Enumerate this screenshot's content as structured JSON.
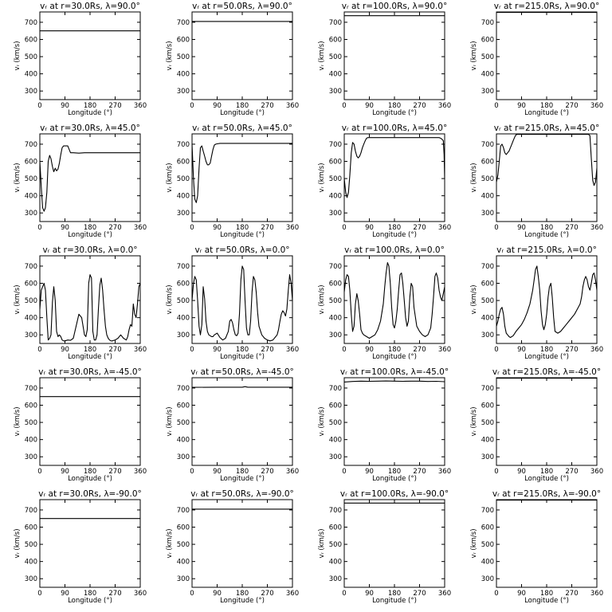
{
  "figure": {
    "x_label": "Longitude (°)",
    "y_label": "vᵣ (km/s)",
    "x_ticks": [
      0,
      90,
      180,
      270,
      360
    ],
    "y_ticks": [
      300,
      400,
      500,
      600,
      700
    ]
  },
  "chart_data": [
    {
      "type": "line",
      "title": "vᵣ at r=30.0Rs, λ=90.0°",
      "xlabel": "Longitude (°)",
      "ylabel": "vᵣ (km/s)",
      "xlim": [
        0,
        360
      ],
      "ylim": [
        250,
        760
      ],
      "x": [
        0,
        360
      ],
      "y": [
        650,
        650
      ]
    },
    {
      "type": "line",
      "title": "vᵣ at r=50.0Rs, λ=90.0°",
      "xlabel": "Longitude (°)",
      "ylabel": "vᵣ (km/s)",
      "xlim": [
        0,
        360
      ],
      "ylim": [
        250,
        760
      ],
      "x": [
        0,
        360
      ],
      "y": [
        705,
        705
      ]
    },
    {
      "type": "line",
      "title": "vᵣ at r=100.0Rs, λ=90.0°",
      "xlabel": "Longitude (°)",
      "ylabel": "vᵣ (km/s)",
      "xlim": [
        0,
        360
      ],
      "ylim": [
        250,
        760
      ],
      "x": [
        0,
        360
      ],
      "y": [
        738,
        738
      ]
    },
    {
      "type": "line",
      "title": "vᵣ at r=215.0Rs, λ=90.0°",
      "xlabel": "Longitude (°)",
      "ylabel": "vᵣ (km/s)",
      "xlim": [
        0,
        360
      ],
      "ylim": [
        250,
        760
      ],
      "x": [
        0,
        360
      ],
      "y": [
        757,
        757
      ]
    },
    {
      "type": "line",
      "title": "vᵣ at r=30.0Rs, λ=45.0°",
      "xlabel": "Longitude (°)",
      "ylabel": "vᵣ (km/s)",
      "xlim": [
        0,
        360
      ],
      "ylim": [
        250,
        760
      ],
      "x": [
        0,
        5,
        10,
        15,
        20,
        25,
        30,
        35,
        40,
        45,
        50,
        55,
        60,
        65,
        70,
        75,
        80,
        85,
        90,
        95,
        100,
        110,
        120,
        140,
        160,
        200,
        250,
        300,
        360
      ],
      "y": [
        600,
        450,
        330,
        310,
        330,
        420,
        600,
        635,
        615,
        570,
        540,
        560,
        545,
        555,
        590,
        640,
        680,
        690,
        690,
        690,
        690,
        650,
        650,
        648,
        650,
        650,
        650,
        650,
        650
      ]
    },
    {
      "type": "line",
      "title": "vᵣ at r=50.0Rs, λ=45.0°",
      "xlabel": "Longitude (°)",
      "ylabel": "vᵣ (km/s)",
      "xlim": [
        0,
        360
      ],
      "ylim": [
        250,
        760
      ],
      "x": [
        0,
        5,
        10,
        15,
        20,
        25,
        30,
        35,
        40,
        45,
        50,
        55,
        60,
        65,
        70,
        75,
        80,
        85,
        90,
        100,
        110,
        120,
        140,
        180,
        240,
        300,
        360
      ],
      "y": [
        700,
        500,
        380,
        360,
        400,
        560,
        680,
        690,
        660,
        630,
        600,
        580,
        580,
        590,
        630,
        670,
        695,
        700,
        702,
        705,
        705,
        705,
        705,
        705,
        705,
        705,
        705
      ]
    },
    {
      "type": "line",
      "title": "vᵣ at r=100.0Rs, λ=45.0°",
      "xlabel": "Longitude (°)",
      "ylabel": "vᵣ (km/s)",
      "xlim": [
        0,
        360
      ],
      "ylim": [
        250,
        760
      ],
      "x": [
        0,
        5,
        10,
        15,
        20,
        25,
        30,
        35,
        40,
        45,
        50,
        55,
        60,
        65,
        70,
        75,
        80,
        85,
        90,
        95,
        100,
        110,
        120,
        140,
        180,
        240,
        300,
        320,
        330,
        340,
        345,
        350,
        355,
        358,
        360
      ],
      "y": [
        500,
        420,
        390,
        420,
        520,
        650,
        710,
        700,
        660,
        630,
        620,
        630,
        650,
        680,
        700,
        720,
        735,
        738,
        738,
        738,
        738,
        738,
        738,
        738,
        738,
        738,
        738,
        738,
        738,
        738,
        735,
        730,
        720,
        640,
        500
      ]
    },
    {
      "type": "line",
      "title": "vᵣ at r=215.0Rs, λ=45.0°",
      "xlabel": "Longitude (°)",
      "ylabel": "vᵣ (km/s)",
      "xlim": [
        0,
        360
      ],
      "ylim": [
        250,
        760
      ],
      "x": [
        0,
        5,
        10,
        15,
        20,
        25,
        30,
        35,
        40,
        45,
        50,
        55,
        60,
        65,
        70,
        75,
        80,
        85,
        90,
        100,
        110,
        120,
        140,
        180,
        240,
        300,
        320,
        330,
        335,
        340,
        345,
        350,
        355,
        360
      ],
      "y": [
        480,
        520,
        600,
        690,
        700,
        680,
        650,
        640,
        650,
        660,
        680,
        700,
        720,
        740,
        755,
        757,
        757,
        757,
        757,
        757,
        757,
        757,
        757,
        757,
        757,
        757,
        757,
        757,
        750,
        620,
        490,
        460,
        480,
        560
      ]
    },
    {
      "type": "line",
      "title": "vᵣ at r=30.0Rs, λ=0.0°",
      "xlabel": "Longitude (°)",
      "ylabel": "vᵣ (km/s)",
      "xlim": [
        0,
        360
      ],
      "ylim": [
        250,
        760
      ],
      "x": [
        0,
        5,
        10,
        15,
        20,
        25,
        30,
        35,
        40,
        45,
        50,
        55,
        60,
        65,
        70,
        75,
        80,
        85,
        90,
        100,
        110,
        120,
        130,
        140,
        150,
        160,
        165,
        170,
        175,
        180,
        185,
        190,
        195,
        200,
        205,
        210,
        215,
        220,
        225,
        230,
        235,
        240,
        245,
        250,
        255,
        260,
        265,
        270,
        280,
        290,
        300,
        310,
        315,
        320,
        325,
        330,
        335,
        340,
        345,
        350,
        355,
        360
      ],
      "y": [
        450,
        560,
        580,
        600,
        560,
        400,
        270,
        280,
        300,
        490,
        580,
        500,
        320,
        290,
        300,
        290,
        270,
        265,
        265,
        270,
        268,
        280,
        350,
        420,
        400,
        300,
        290,
        330,
        600,
        650,
        630,
        320,
        270,
        270,
        300,
        450,
        590,
        630,
        560,
        450,
        350,
        300,
        280,
        270,
        265,
        265,
        268,
        270,
        280,
        300,
        280,
        270,
        290,
        330,
        360,
        350,
        480,
        420,
        400,
        480,
        580,
        600
      ]
    },
    {
      "type": "line",
      "title": "vᵣ at r=50.0Rs, λ=0.0°",
      "xlabel": "Longitude (°)",
      "ylabel": "vᵣ (km/s)",
      "xlim": [
        0,
        360
      ],
      "ylim": [
        250,
        760
      ],
      "x": [
        0,
        5,
        10,
        15,
        20,
        25,
        30,
        35,
        40,
        45,
        50,
        55,
        60,
        65,
        70,
        75,
        80,
        90,
        100,
        110,
        120,
        130,
        135,
        140,
        145,
        150,
        155,
        160,
        165,
        170,
        175,
        180,
        185,
        190,
        195,
        200,
        205,
        210,
        215,
        220,
        225,
        230,
        235,
        240,
        250,
        260,
        270,
        280,
        290,
        300,
        305,
        310,
        315,
        320,
        325,
        330,
        335,
        340,
        345,
        350,
        355,
        360
      ],
      "y": [
        500,
        600,
        640,
        620,
        500,
        350,
        300,
        360,
        580,
        510,
        380,
        320,
        300,
        295,
        290,
        290,
        300,
        310,
        285,
        270,
        280,
        320,
        380,
        390,
        370,
        330,
        300,
        295,
        310,
        420,
        620,
        700,
        680,
        500,
        340,
        300,
        300,
        380,
        550,
        640,
        620,
        550,
        430,
        350,
        300,
        280,
        270,
        265,
        270,
        290,
        300,
        330,
        380,
        420,
        440,
        430,
        410,
        450,
        560,
        650,
        600,
        500
      ]
    },
    {
      "type": "line",
      "title": "vᵣ at r=100.0Rs, λ=0.0°",
      "xlabel": "Longitude (°)",
      "ylabel": "vᵣ (km/s)",
      "xlim": [
        0,
        360
      ],
      "ylim": [
        250,
        760
      ],
      "x": [
        0,
        5,
        10,
        15,
        20,
        25,
        30,
        35,
        40,
        45,
        50,
        55,
        60,
        65,
        70,
        80,
        90,
        100,
        110,
        120,
        130,
        140,
        145,
        150,
        155,
        160,
        165,
        170,
        175,
        180,
        185,
        190,
        195,
        200,
        205,
        210,
        215,
        220,
        225,
        230,
        235,
        240,
        245,
        250,
        260,
        270,
        280,
        290,
        300,
        310,
        315,
        320,
        325,
        330,
        335,
        340,
        345,
        350,
        355,
        360
      ],
      "y": [
        550,
        620,
        650,
        640,
        560,
        420,
        320,
        350,
        480,
        540,
        500,
        420,
        330,
        310,
        300,
        290,
        280,
        290,
        300,
        330,
        380,
        480,
        580,
        660,
        720,
        700,
        600,
        460,
        360,
        340,
        380,
        450,
        560,
        650,
        660,
        600,
        500,
        400,
        350,
        380,
        520,
        600,
        580,
        460,
        350,
        320,
        300,
        290,
        300,
        340,
        420,
        520,
        640,
        660,
        630,
        560,
        520,
        500,
        540,
        580
      ]
    },
    {
      "type": "line",
      "title": "vᵣ at r=215.0Rs, λ=0.0°",
      "xlabel": "Longitude (°)",
      "ylabel": "vᵣ (km/s)",
      "xlim": [
        0,
        360
      ],
      "ylim": [
        250,
        760
      ],
      "x": [
        0,
        5,
        10,
        15,
        20,
        25,
        30,
        35,
        40,
        45,
        50,
        60,
        70,
        80,
        90,
        100,
        110,
        120,
        130,
        135,
        140,
        145,
        150,
        155,
        160,
        165,
        170,
        175,
        180,
        185,
        190,
        195,
        200,
        205,
        210,
        220,
        230,
        240,
        250,
        260,
        270,
        280,
        290,
        300,
        305,
        310,
        315,
        320,
        325,
        330,
        335,
        340,
        345,
        350,
        355,
        360
      ],
      "y": [
        350,
        380,
        420,
        450,
        460,
        420,
        350,
        310,
        300,
        290,
        285,
        295,
        320,
        340,
        360,
        390,
        430,
        480,
        560,
        620,
        680,
        700,
        640,
        560,
        440,
        360,
        330,
        360,
        420,
        520,
        580,
        600,
        520,
        400,
        320,
        310,
        320,
        340,
        360,
        380,
        400,
        420,
        450,
        480,
        520,
        580,
        620,
        640,
        620,
        580,
        560,
        600,
        650,
        660,
        620,
        560
      ]
    },
    {
      "type": "line",
      "title": "vᵣ at r=30.0Rs, λ=-45.0°",
      "xlabel": "Longitude (°)",
      "ylabel": "vᵣ (km/s)",
      "xlim": [
        0,
        360
      ],
      "ylim": [
        250,
        760
      ],
      "x": [
        0,
        360
      ],
      "y": [
        650,
        650
      ]
    },
    {
      "type": "line",
      "title": "vᵣ at r=50.0Rs, λ=-45.0°",
      "xlabel": "Longitude (°)",
      "ylabel": "vᵣ (km/s)",
      "xlim": [
        0,
        360
      ],
      "ylim": [
        250,
        760
      ],
      "x": [
        0,
        90,
        180,
        190,
        200,
        270,
        360
      ],
      "y": [
        704,
        705,
        705,
        708,
        705,
        705,
        705
      ]
    },
    {
      "type": "line",
      "title": "vᵣ at r=100.0Rs, λ=-45.0°",
      "xlabel": "Longitude (°)",
      "ylabel": "vᵣ (km/s)",
      "xlim": [
        0,
        360
      ],
      "ylim": [
        250,
        760
      ],
      "x": [
        0,
        30,
        60,
        90,
        120,
        150,
        180,
        210,
        240,
        270,
        300,
        330,
        360
      ],
      "y": [
        735,
        738,
        740,
        739,
        740,
        741,
        740,
        739,
        740,
        740,
        738,
        739,
        737
      ]
    },
    {
      "type": "line",
      "title": "vᵣ at r=215.0Rs, λ=-45.0°",
      "xlabel": "Longitude (°)",
      "ylabel": "vᵣ (km/s)",
      "xlim": [
        0,
        360
      ],
      "ylim": [
        250,
        760
      ],
      "x": [
        0,
        360
      ],
      "y": [
        757,
        757
      ]
    },
    {
      "type": "line",
      "title": "vᵣ at r=30.0Rs, λ=-90.0°",
      "xlabel": "Longitude (°)",
      "ylabel": "vᵣ (km/s)",
      "xlim": [
        0,
        360
      ],
      "ylim": [
        250,
        760
      ],
      "x": [
        0,
        360
      ],
      "y": [
        650,
        650
      ]
    },
    {
      "type": "line",
      "title": "vᵣ at r=50.0Rs, λ=-90.0°",
      "xlabel": "Longitude (°)",
      "ylabel": "vᵣ (km/s)",
      "xlim": [
        0,
        360
      ],
      "ylim": [
        250,
        760
      ],
      "x": [
        0,
        360
      ],
      "y": [
        705,
        705
      ]
    },
    {
      "type": "line",
      "title": "vᵣ at r=100.0Rs, λ=-90.0°",
      "xlabel": "Longitude (°)",
      "ylabel": "vᵣ (km/s)",
      "xlim": [
        0,
        360
      ],
      "ylim": [
        250,
        760
      ],
      "x": [
        0,
        360
      ],
      "y": [
        740,
        740
      ]
    },
    {
      "type": "line",
      "title": "vᵣ at r=215.0Rs, λ=-90.0°",
      "xlabel": "Longitude (°)",
      "ylabel": "vᵣ (km/s)",
      "xlim": [
        0,
        360
      ],
      "ylim": [
        250,
        760
      ],
      "x": [
        0,
        360
      ],
      "y": [
        757,
        757
      ]
    }
  ]
}
